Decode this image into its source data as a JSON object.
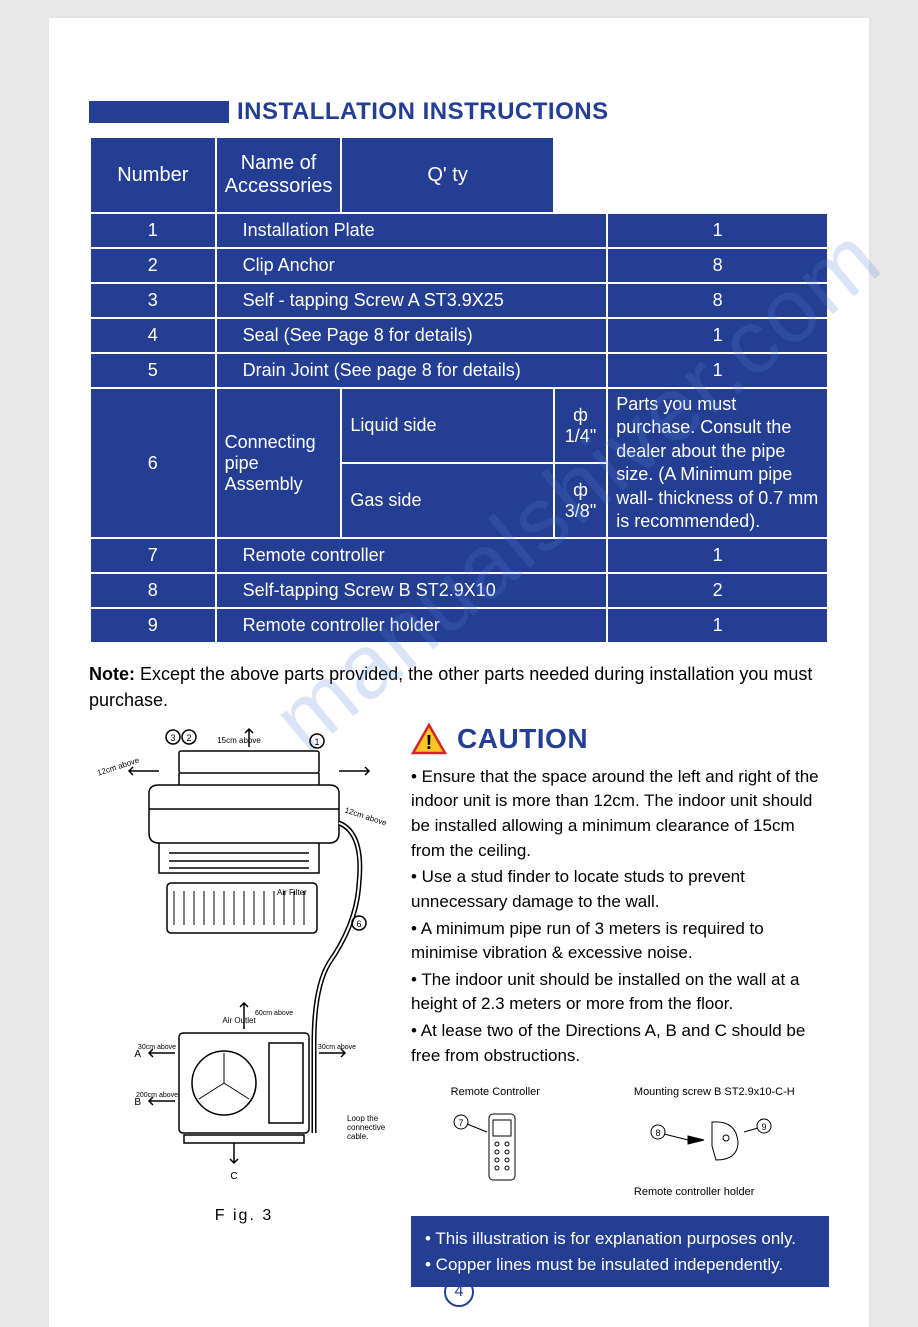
{
  "title": "INSTALLATION INSTRUCTIONS",
  "table": {
    "headers": {
      "number": "Number",
      "name": "Name of Accessories",
      "qty": "Q'   ty"
    },
    "rows": [
      {
        "num": "1",
        "name": "Installation Plate",
        "qty": "1"
      },
      {
        "num": "2",
        "name": "Clip Anchor",
        "qty": "8"
      },
      {
        "num": "3",
        "name": "Self - tapping Screw A ST3.9X25",
        "qty": "8"
      },
      {
        "num": "4",
        "name": "Seal (See Page 8 for details)",
        "qty": "1"
      },
      {
        "num": "5",
        "name": "Drain Joint (See page 8 for details)",
        "qty": "1"
      }
    ],
    "row6": {
      "num": "6",
      "label": "Connecting pipe Assembly",
      "liquid_label": "Liquid side",
      "liquid_val": "ф 1/4\"",
      "gas_label": "Gas side",
      "gas_val": "ф 3/8\"",
      "note": "Parts you must purchase. Consult the dealer about the pipe size. (A Minimum pipe wall- thickness of 0.7 mm is recommended)."
    },
    "rows_after": [
      {
        "num": "7",
        "name": "Remote controller",
        "qty": "1"
      },
      {
        "num": "8",
        "name": "Self-tapping Screw B ST2.9X10",
        "qty": "2"
      },
      {
        "num": "9",
        "name": "Remote controller holder",
        "qty": "1"
      }
    ]
  },
  "note_label": "Note:",
  "note_text": " Except the above parts provided, the other parts needed during installation you must purchase.",
  "fig_caption": "F ig. 3",
  "fig_labels": {
    "l12a": "12cm above",
    "l12b": "12cm above",
    "l15": "15cm above",
    "air_filter": "Air Filter",
    "air_outlet": "Air Outlet",
    "loop": "Loop the connective cable.",
    "c1": "1",
    "c2": "2",
    "c3": "3",
    "c6": "6",
    "A": "A",
    "B": "B",
    "C": "C",
    "d30a": "30cm above",
    "d30b": "30cm above",
    "d60": "60cm above",
    "d200": "200cm above"
  },
  "caution": "CAUTION",
  "bullets": [
    "• Ensure that the space around the left and right of the indoor unit is more than 12cm. The indoor unit should be installed allowing a minimum clearance of 15cm from the ceiling.",
    "• Use a stud finder to locate studs to prevent unnecessary damage to the wall.",
    "• A minimum pipe run of 3 meters is required to minimise vibration & excessive noise.",
    "• The indoor unit should be installed on the wall at a height of 2.3 meters or more from the floor.",
    "• At lease two of the Directions A, B and C should be free from obstructions."
  ],
  "mini": {
    "remote_label": "Remote Controller",
    "c7": "7",
    "mount_label": "Mounting screw  B ST2.9x10-C-H",
    "c8": "8",
    "c9": "9",
    "holder_label": "Remote  controller holder"
  },
  "bluebox": [
    "• This illustration is for explanation purposes only.",
    "• Copper lines must be insulated independently."
  ],
  "page_number": "4",
  "watermark": "manualshiver.com",
  "colors": {
    "primary": "#243e93",
    "page_bg": "#ffffff",
    "body_bg": "#e8e8e8",
    "caution_yellow": "#f9c623",
    "caution_red": "#d8232a"
  }
}
